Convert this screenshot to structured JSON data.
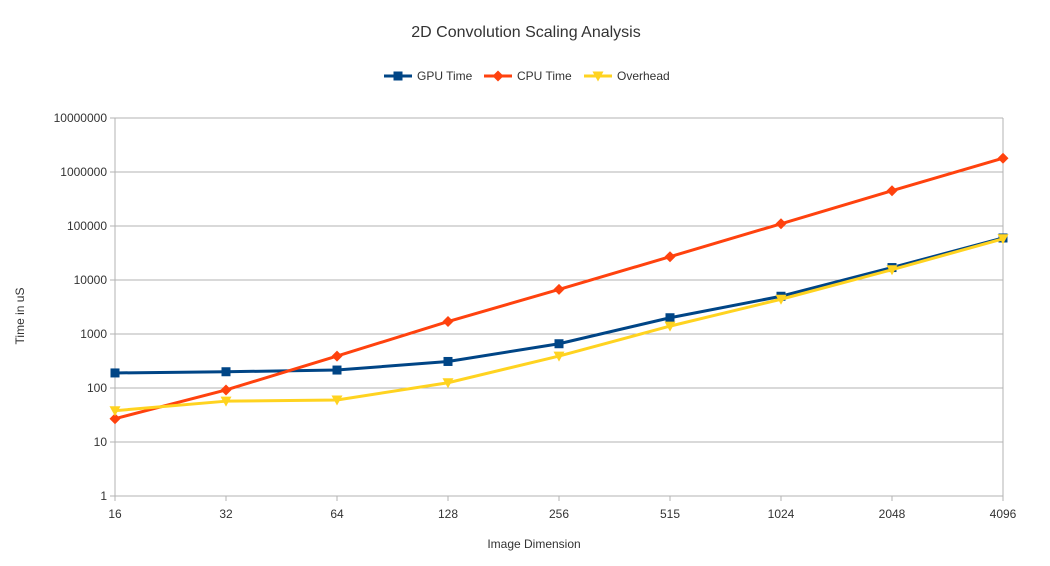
{
  "chart_data": {
    "type": "line",
    "title": "2D Convolution Scaling Analysis",
    "xlabel": "Image Dimension",
    "ylabel": "Time in uS",
    "y_scale": "log",
    "ylim": [
      1,
      10000000
    ],
    "y_ticks": [
      "1",
      "10",
      "100",
      "1000",
      "10000",
      "100000",
      "1000000",
      "10000000"
    ],
    "categories": [
      "16",
      "32",
      "64",
      "128",
      "256",
      "515",
      "1024",
      "2048",
      "4096"
    ],
    "grid": true,
    "legend_position": "top",
    "series": [
      {
        "name": "GPU Time",
        "color": "#004586",
        "marker": "square",
        "values": [
          190,
          200,
          215,
          310,
          660,
          2000,
          5000,
          17000,
          60000
        ]
      },
      {
        "name": "CPU Time",
        "color": "#ff420e",
        "marker": "diamond",
        "values": [
          27,
          92,
          390,
          1700,
          6700,
          27000,
          110000,
          450000,
          1800000
        ]
      },
      {
        "name": "Overhead",
        "color": "#ffd320",
        "marker": "triangle-down",
        "values": [
          38,
          57,
          60,
          125,
          390,
          1400,
          4400,
          15500,
          58000
        ]
      }
    ]
  }
}
